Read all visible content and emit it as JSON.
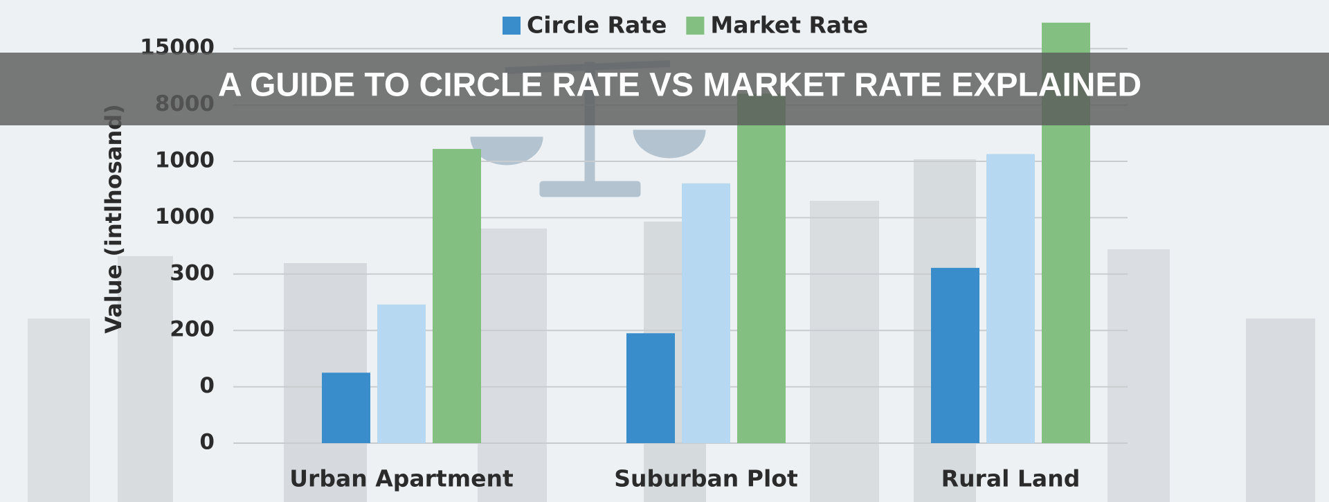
{
  "chart_data": {
    "type": "bar",
    "title": "A GUIDE TO CIRCLE RATE VS MARKET RATE EXPLAINED",
    "y_label": "Value (intlhosand)",
    "categories": [
      "Urban Apartment",
      "Suburban Plot",
      "Rural Land"
    ],
    "series": [
      {
        "name": "Circle Rate",
        "color": "#3a8dcb",
        "values": [
          1.25,
          1.95,
          3.11
        ]
      },
      {
        "color": "#b6d9f1",
        "values": [
          2.46,
          4.61,
          5.13
        ]
      },
      {
        "name": "Market Rate",
        "color": "#82bf80",
        "values": [
          5.22,
          6.2,
          7.46
        ]
      }
    ],
    "ylim": [
      0,
      7.5
    ],
    "yticks": [
      {
        "value": 0,
        "label": "0"
      },
      {
        "value": 1,
        "label": "0"
      },
      {
        "value": 2,
        "label": "200"
      },
      {
        "value": 3,
        "label": "300"
      },
      {
        "value": 4,
        "label": "1000"
      },
      {
        "value": 5,
        "label": "1000"
      },
      {
        "value": 6,
        "label": "8000"
      },
      {
        "value": 7,
        "label": "15000"
      }
    ],
    "grid": true,
    "legend": "top"
  }
}
